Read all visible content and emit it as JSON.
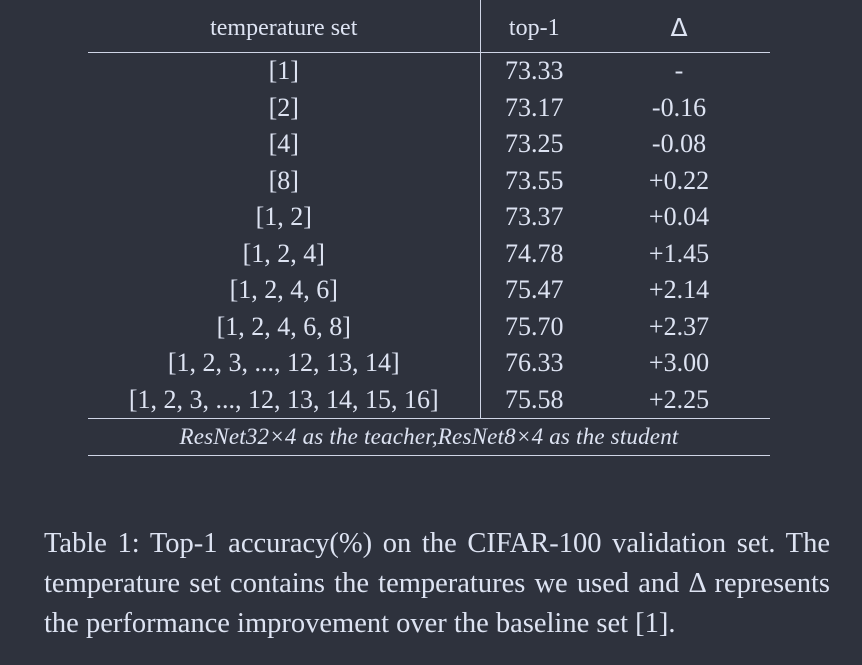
{
  "table": {
    "headers": {
      "set": "temperature set",
      "top1": "top-1",
      "delta": "Δ"
    },
    "rows": [
      {
        "set": "[1]",
        "top1": "73.33",
        "delta": "-"
      },
      {
        "set": "[2]",
        "top1": "73.17",
        "delta": "-0.16"
      },
      {
        "set": "[4]",
        "top1": "73.25",
        "delta": "-0.08"
      },
      {
        "set": "[8]",
        "top1": "73.55",
        "delta": "+0.22"
      },
      {
        "set": "[1, 2]",
        "top1": "73.37",
        "delta": "+0.04"
      },
      {
        "set": "[1, 2, 4]",
        "top1": "74.78",
        "delta": "+1.45"
      },
      {
        "set": "[1, 2, 4, 6]",
        "top1": "75.47",
        "delta": "+2.14"
      },
      {
        "set": "[1, 2, 4, 6, 8]",
        "top1": "75.70",
        "delta": "+2.37"
      },
      {
        "set": "[1, 2, 3, ..., 12, 13, 14]",
        "top1": "76.33",
        "delta": "+3.00"
      },
      {
        "set": "[1, 2, 3, ..., 12, 13, 14, 15, 16]",
        "top1": "75.58",
        "delta": "+2.25"
      }
    ],
    "footer": "ResNet32×4 as the teacher,ResNet8×4 as the student"
  },
  "caption": "Table 1: Top-1 accuracy(%) on the CIFAR-100 validation set. The temperature set contains the temperatures we used and Δ represents the performance improvement over the baseline set [1]."
}
